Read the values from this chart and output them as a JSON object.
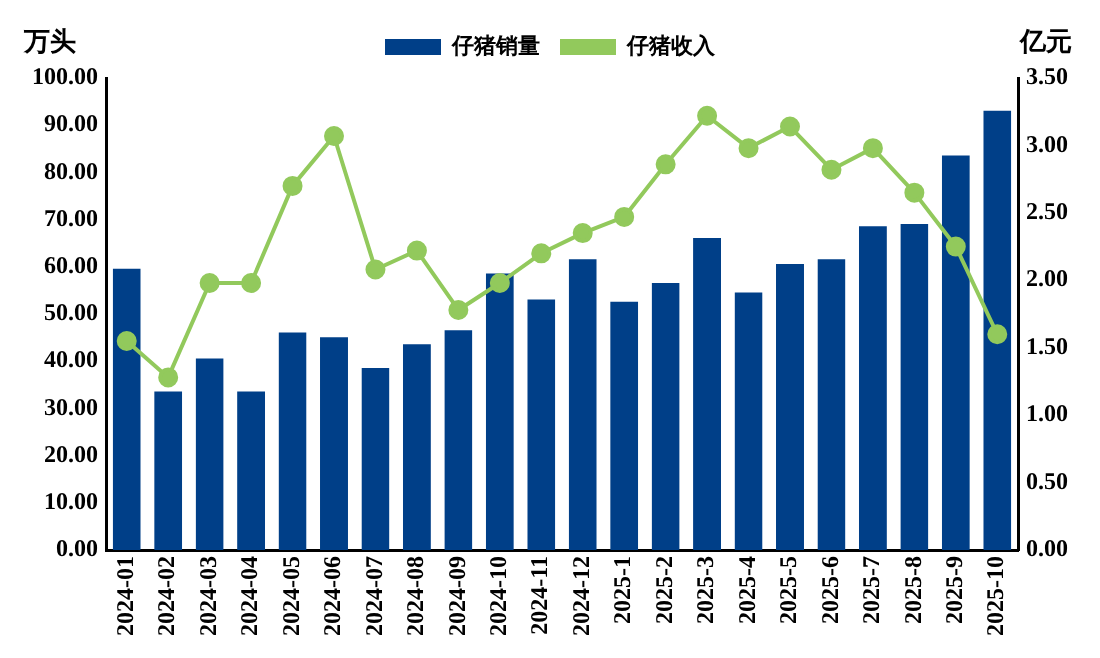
{
  "chart_data": {
    "type": "bar",
    "ylabel": "万头",
    "y2label": "亿元",
    "categories": [
      "2024-01",
      "2024-02",
      "2024-03",
      "2024-04",
      "2024-05",
      "2024-06",
      "2024-07",
      "2024-08",
      "2024-09",
      "2024-10",
      "2024-11",
      "2024-12",
      "2025-1",
      "2025-2",
      "2025-3",
      "2025-4",
      "2025-5",
      "2025-6",
      "2025-7",
      "2025-8",
      "2025-9",
      "2025-10"
    ],
    "series": [
      {
        "name": "仔猪销量",
        "color": "#003f88",
        "values": [
          60,
          34,
          41,
          34,
          46.5,
          45.5,
          39,
          44,
          47,
          59,
          53.5,
          62,
          53,
          57,
          66.5,
          55,
          61,
          62,
          69,
          69.5,
          84,
          93.5
        ]
      },
      {
        "name": "仔猪收入",
        "type": "line",
        "axis": "y2",
        "color": "#92c95c",
        "values": [
          1.55,
          1.28,
          1.98,
          1.98,
          2.7,
          3.07,
          2.08,
          2.22,
          1.78,
          1.98,
          2.2,
          2.35,
          2.47,
          2.86,
          3.22,
          2.98,
          3.14,
          2.82,
          2.98,
          2.65,
          2.25,
          1.6
        ]
      }
    ],
    "ylim": [
      0,
      100
    ],
    "yticks": [
      {
        "value": 0,
        "label": "0.00"
      },
      {
        "value": 10,
        "label": "10.00"
      },
      {
        "value": 20,
        "label": "20.00"
      },
      {
        "value": 30,
        "label": "30.00"
      },
      {
        "value": 40,
        "label": "40.00"
      },
      {
        "value": 50,
        "label": "50.00"
      },
      {
        "value": 60,
        "label": "60.00"
      },
      {
        "value": 70,
        "label": "70.00"
      },
      {
        "value": 80,
        "label": "80.00"
      },
      {
        "value": 90,
        "label": "90.00"
      },
      {
        "value": 100,
        "label": "100.00"
      }
    ],
    "y2lim": [
      0,
      3.5
    ],
    "y2ticks": [
      {
        "value": 0,
        "label": "0.00"
      },
      {
        "value": 0.5,
        "label": "0.50"
      },
      {
        "value": 1,
        "label": "1.00"
      },
      {
        "value": 1.5,
        "label": "1.50"
      },
      {
        "value": 2,
        "label": "2.00"
      },
      {
        "value": 2.5,
        "label": "2.50"
      },
      {
        "value": 3,
        "label": "3.00"
      },
      {
        "value": 3.5,
        "label": "3.50"
      }
    ],
    "legend": "top",
    "marker": "circle",
    "grid": false
  }
}
